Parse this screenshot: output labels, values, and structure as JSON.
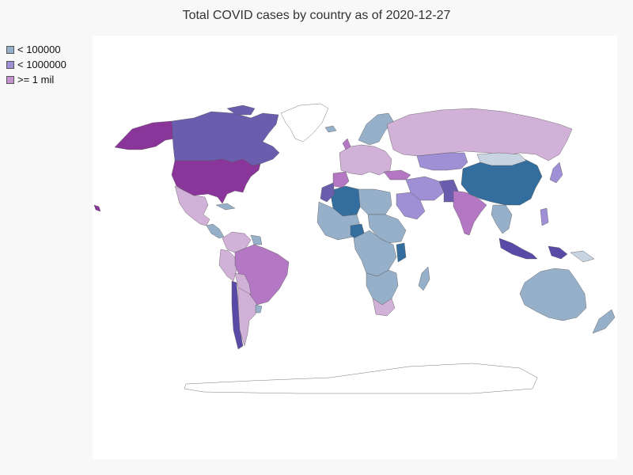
{
  "title": "Total COVID cases by country as of 2020-12-27",
  "colors": {
    "low": "#97b0ca",
    "mid": "#9f90d6",
    "high": "#c592d2",
    "dark_blue": "#336e9e",
    "indigo": "#5a4aa7",
    "purple": "#8a3599",
    "orchid": "#b377c3",
    "lilac": "#d2b1d9",
    "pale": "#c9d4e2",
    "slate": "#6b5dae",
    "none": "#ffffff"
  },
  "legend": [
    {
      "label": "< 100000",
      "color": "#97b0ca"
    },
    {
      "label": "< 1000000",
      "color": "#9f90d6"
    },
    {
      "label": ">= 1 mil",
      "color": "#c592d2"
    }
  ]
}
